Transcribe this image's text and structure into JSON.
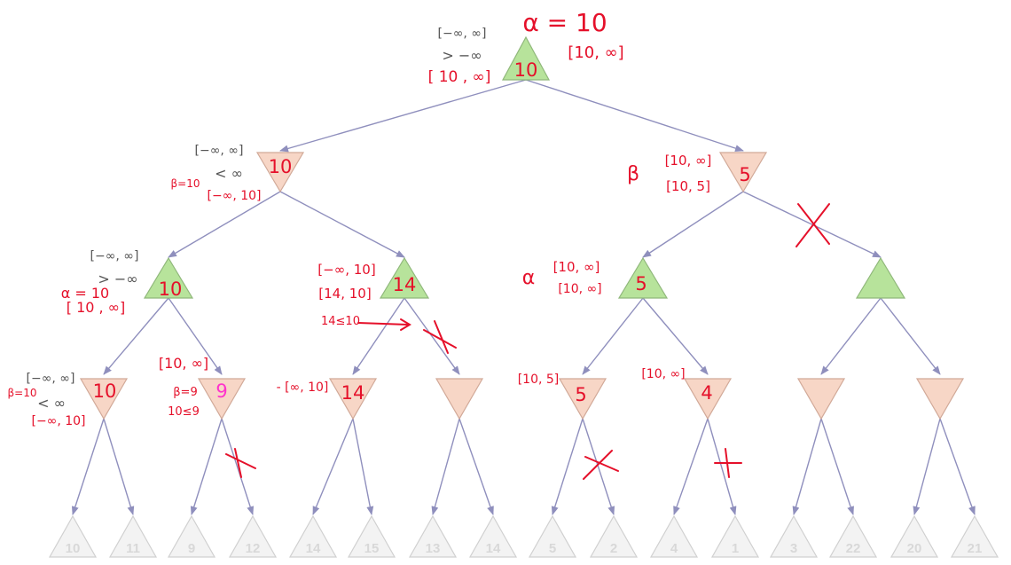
{
  "colors": {
    "edge": "#8f8fbd",
    "max_fill": "#b7e39b",
    "max_stroke": "#8fb77a",
    "min_fill": "#f7d6c6",
    "min_stroke": "#d1a998",
    "leaf_fill": "#f3f3f3",
    "leaf_stroke": "#d0d0d0",
    "hand_ink": "#e5102a",
    "pink_ink": "#ff33cc",
    "printed_text": "#555555"
  },
  "nodes": {
    "root": {
      "kind": "max",
      "value": "10"
    },
    "l1_left": {
      "kind": "min",
      "value": "10"
    },
    "l1_right": {
      "kind": "min",
      "value": "5"
    },
    "l2_a": {
      "kind": "max",
      "value": "10"
    },
    "l2_b": {
      "kind": "max",
      "value": "14"
    },
    "l2_c": {
      "kind": "max",
      "value": "5"
    },
    "l2_d": {
      "kind": "max",
      "value": ""
    },
    "l3_a": {
      "kind": "min",
      "value": "10"
    },
    "l3_b": {
      "kind": "min",
      "value": "9"
    },
    "l3_c": {
      "kind": "min",
      "value": "14"
    },
    "l3_d": {
      "kind": "min",
      "value": ""
    },
    "l3_e": {
      "kind": "min",
      "value": "5"
    },
    "l3_f": {
      "kind": "min",
      "value": "4"
    },
    "l3_g": {
      "kind": "min",
      "value": ""
    },
    "l3_h": {
      "kind": "min",
      "value": ""
    }
  },
  "leaves": [
    "10",
    "11",
    "9",
    "12",
    "14",
    "15",
    "13",
    "14",
    "5",
    "2",
    "4",
    "1",
    "3",
    "22",
    "20",
    "21"
  ],
  "printed_labels": {
    "root_interval": "[−∞, ∞]",
    "root_bound": "> −∞",
    "l1_left_interval": "[−∞, ∞]",
    "l1_left_bound": "< ∞",
    "l2_a_interval": "[−∞, ∞]",
    "l2_a_bound": "> −∞",
    "l3_a_interval": "[−∞, ∞]",
    "l3_a_bound": "< ∞"
  },
  "handwritten": {
    "alpha_root": "α = 10",
    "root_left_interval": "[ 10 , ∞]",
    "root_right_interval": "[10, ∞]",
    "beta_l1_left": "β=10",
    "l1_left_interval": "[−∞, 10]",
    "beta_symbol": "β",
    "l1_right_interval_1": "[10, ∞]",
    "l1_right_interval_2": "[10, 5]",
    "alpha_l2_a": "α = 10",
    "l2_a_interval": "[ 10 , ∞]",
    "l2_b_interval_1": "[−∞, 10]",
    "l2_b_interval_2": "[14, 10]",
    "l2_b_note": "14≤10",
    "alpha_symbol": "α",
    "l2_c_interval_1": "[10, ∞]",
    "l2_c_interval_2": "[10, ∞]",
    "beta_l3_a": "β=10",
    "l3_a_interval": "[−∞, 10]",
    "l3_b_interval": "[10, ∞]",
    "beta_l3_b": "β=9",
    "l3_b_note": "10≤9",
    "l3_c_interval": "- [∞, 10]",
    "l3_e_interval": "[10, 5]",
    "l3_f_interval": "[10, ∞]"
  }
}
